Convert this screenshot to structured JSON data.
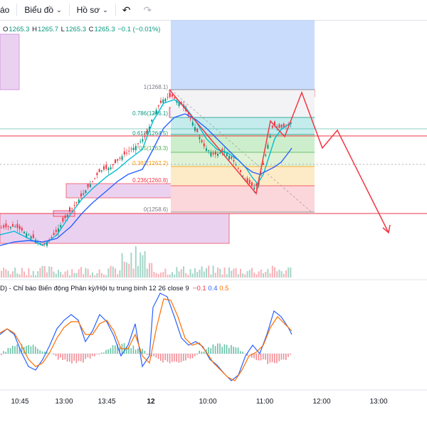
{
  "toolbar": {
    "partial_label": "áo",
    "chart_menu": "Biểu đồ",
    "profile_menu": "Hồ sơ",
    "undo_icon": "undo-icon",
    "redo_icon": "redo-icon"
  },
  "ohlc": {
    "open_key": "O",
    "open": "1265.3",
    "high_key": "H",
    "high": "1265.7",
    "low_key": "L",
    "low": "1265.3",
    "close_key": "C",
    "close": "1265.3",
    "change": "−0.1 (−0.01%)"
  },
  "fib_levels": [
    {
      "label": "1(1268.1)",
      "color": "#787b86"
    },
    {
      "label": "0.786(1266.1)",
      "color": "#089981"
    },
    {
      "label": "0.618(1264.5)",
      "color": "#089981"
    },
    {
      "label": "0.5(1263.3)",
      "color": "#4caf50"
    },
    {
      "label": "0.382(1262.2)",
      "color": "#ff9800"
    },
    {
      "label": "0.236(1260.8)",
      "color": "#f23645"
    },
    {
      "label": "0(1258.6)",
      "color": "#787b86"
    }
  ],
  "macd": {
    "name": "D) - Chỉ báo Biến động Phân kỳ/Hội tụ trung bình 12 26 close 9",
    "hist": "−0.1",
    "macd": "0.4",
    "signal": "0.5"
  },
  "time_axis": [
    "10:45",
    "13:00",
    "13:45",
    "12",
    "10:00",
    "11:00",
    "12:00",
    "13:00"
  ],
  "colors": {
    "up": "#089981",
    "down": "#f23645",
    "ma_fast": "#00bcd4",
    "ma_slow": "#2962ff",
    "zone_purple": "#e1bee7",
    "zone_blue": "#bbdefb"
  }
}
